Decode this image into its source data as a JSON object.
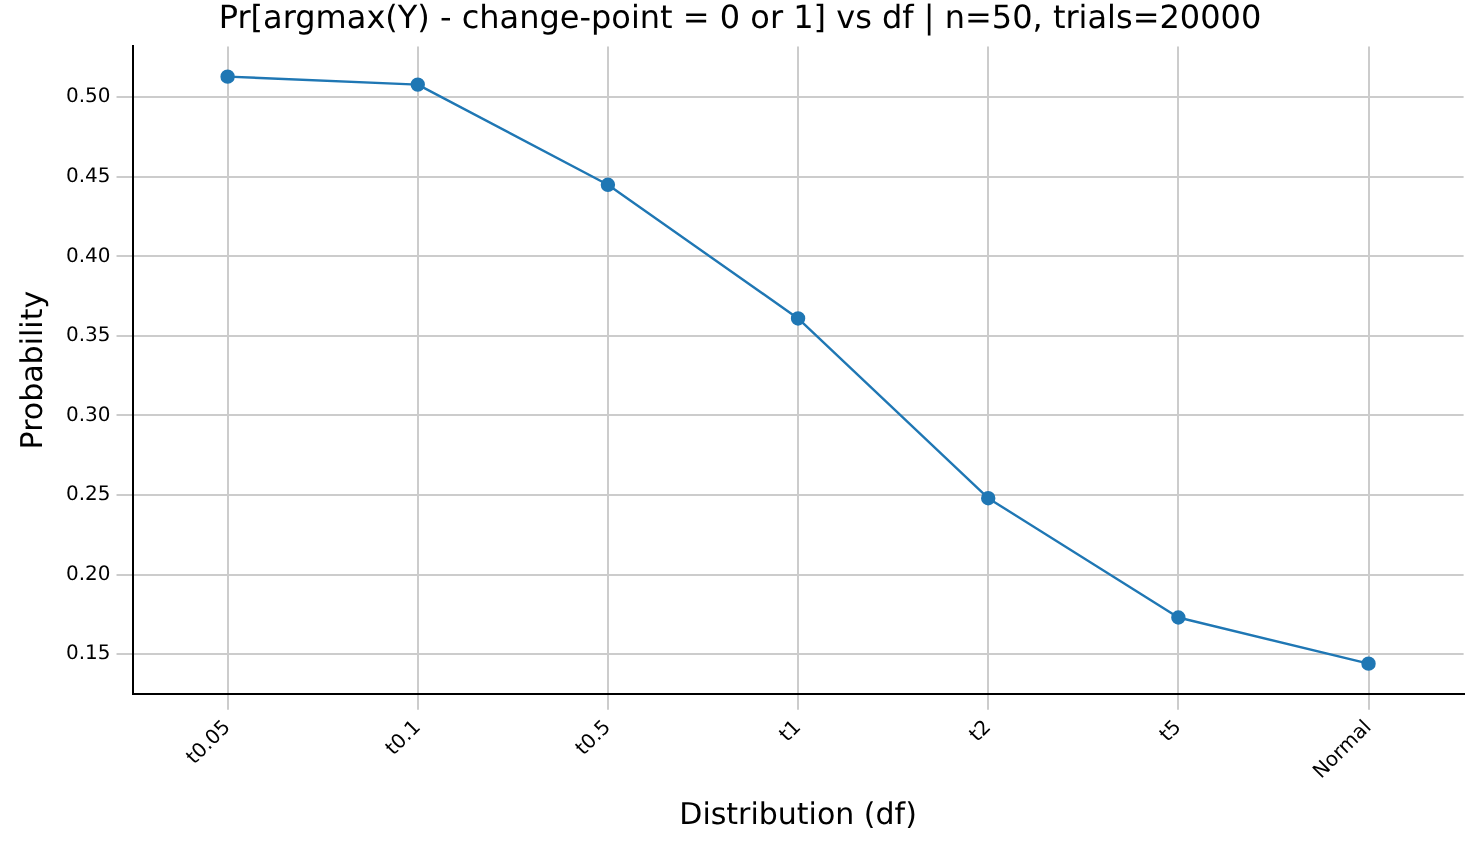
{
  "chart_data": {
    "type": "line",
    "title": "Pr[argmax(Y) - change-point = 0 or 1] vs df | n=50, trials=20000",
    "xlabel": "Distribution (df)",
    "ylabel": "Probability",
    "categories": [
      "t0.05",
      "t0.1",
      "t0.5",
      "t1",
      "t2",
      "t5",
      "Normal"
    ],
    "series": [
      {
        "color": "#1f77b4",
        "values": [
          0.513,
          0.508,
          0.445,
          0.361,
          0.248,
          0.173,
          0.144
        ]
      }
    ],
    "ylim": [
      0.125,
      0.532
    ],
    "yticks": [
      {
        "value": 0.15,
        "label": "0.15"
      },
      {
        "value": 0.2,
        "label": "0.20"
      },
      {
        "value": 0.25,
        "label": "0.25"
      },
      {
        "value": 0.3,
        "label": "0.30"
      },
      {
        "value": 0.35,
        "label": "0.35"
      },
      {
        "value": 0.4,
        "label": "0.40"
      },
      {
        "value": 0.45,
        "label": "0.45"
      },
      {
        "value": 0.5,
        "label": "0.50"
      }
    ],
    "grid": true,
    "marker": "circle",
    "line_style": "solid",
    "legend": false
  }
}
